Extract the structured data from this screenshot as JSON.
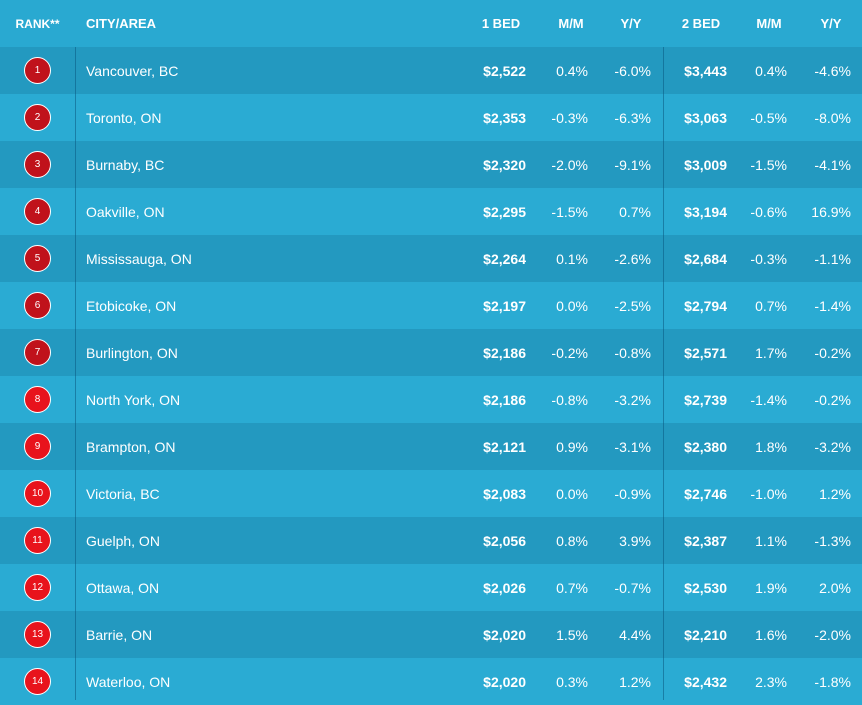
{
  "colors": {
    "background": "#29a9d1",
    "row_dark": "#2399c0",
    "row_light": "#2aabd3",
    "badge_dark_red": "#c0121b",
    "badge_red": "#e8131c",
    "text": "#ffffff"
  },
  "header": {
    "rank": "RANK**",
    "city": "CITY/AREA",
    "bed1": "1 BED",
    "mm1": "M/M",
    "yy1": "Y/Y",
    "bed2": "2 BED",
    "mm2": "M/M",
    "yy2": "Y/Y"
  },
  "chart_data": {
    "type": "table",
    "columns": [
      "RANK**",
      "CITY/AREA",
      "1 BED",
      "M/M",
      "Y/Y",
      "2 BED",
      "M/M",
      "Y/Y"
    ],
    "rows": [
      {
        "rank": "1",
        "city": "Vancouver, BC",
        "bed1": "$2,522",
        "mm1": "0.4%",
        "yy1": "-6.0%",
        "bed2": "$3,443",
        "mm2": "0.4%",
        "yy2": "-4.6%"
      },
      {
        "rank": "2",
        "city": "Toronto, ON",
        "bed1": "$2,353",
        "mm1": "-0.3%",
        "yy1": "-6.3%",
        "bed2": "$3,063",
        "mm2": "-0.5%",
        "yy2": "-8.0%"
      },
      {
        "rank": "3",
        "city": "Burnaby, BC",
        "bed1": "$2,320",
        "mm1": "-2.0%",
        "yy1": "-9.1%",
        "bed2": "$3,009",
        "mm2": "-1.5%",
        "yy2": "-4.1%"
      },
      {
        "rank": "4",
        "city": "Oakville, ON",
        "bed1": "$2,295",
        "mm1": "-1.5%",
        "yy1": "0.7%",
        "bed2": "$3,194",
        "mm2": "-0.6%",
        "yy2": "16.9%"
      },
      {
        "rank": "5",
        "city": "Mississauga, ON",
        "bed1": "$2,264",
        "mm1": "0.1%",
        "yy1": "-2.6%",
        "bed2": "$2,684",
        "mm2": "-0.3%",
        "yy2": "-1.1%"
      },
      {
        "rank": "6",
        "city": "Etobicoke, ON",
        "bed1": "$2,197",
        "mm1": "0.0%",
        "yy1": "-2.5%",
        "bed2": "$2,794",
        "mm2": "0.7%",
        "yy2": "-1.4%"
      },
      {
        "rank": "7",
        "city": "Burlington, ON",
        "bed1": "$2,186",
        "mm1": "-0.2%",
        "yy1": "-0.8%",
        "bed2": "$2,571",
        "mm2": "1.7%",
        "yy2": "-0.2%"
      },
      {
        "rank": "8",
        "city": "North York, ON",
        "bed1": "$2,186",
        "mm1": "-0.8%",
        "yy1": "-3.2%",
        "bed2": "$2,739",
        "mm2": "-1.4%",
        "yy2": "-0.2%"
      },
      {
        "rank": "9",
        "city": "Brampton, ON",
        "bed1": "$2,121",
        "mm1": "0.9%",
        "yy1": "-3.1%",
        "bed2": "$2,380",
        "mm2": "1.8%",
        "yy2": "-3.2%"
      },
      {
        "rank": "10",
        "city": "Victoria, BC",
        "bed1": "$2,083",
        "mm1": "0.0%",
        "yy1": "-0.9%",
        "bed2": "$2,746",
        "mm2": "-1.0%",
        "yy2": "1.2%"
      },
      {
        "rank": "11",
        "city": "Guelph, ON",
        "bed1": "$2,056",
        "mm1": "0.8%",
        "yy1": "3.9%",
        "bed2": "$2,387",
        "mm2": "1.1%",
        "yy2": "-1.3%"
      },
      {
        "rank": "12",
        "city": "Ottawa, ON",
        "bed1": "$2,026",
        "mm1": "0.7%",
        "yy1": "-0.7%",
        "bed2": "$2,530",
        "mm2": "1.9%",
        "yy2": "2.0%"
      },
      {
        "rank": "13",
        "city": "Barrie, ON",
        "bed1": "$2,020",
        "mm1": "1.5%",
        "yy1": "4.4%",
        "bed2": "$2,210",
        "mm2": "1.6%",
        "yy2": "-2.0%"
      },
      {
        "rank": "14",
        "city": "Waterloo, ON",
        "bed1": "$2,020",
        "mm1": "0.3%",
        "yy1": "1.2%",
        "bed2": "$2,432",
        "mm2": "2.3%",
        "yy2": "-1.8%"
      }
    ]
  }
}
